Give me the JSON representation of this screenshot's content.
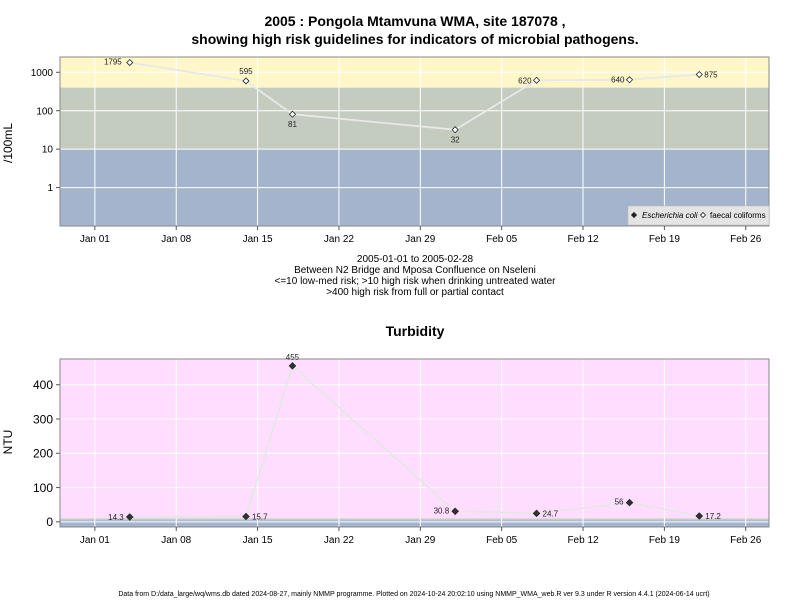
{
  "chart_data": [
    {
      "type": "line",
      "title_line1": "2005 : Pongola Mtamvuna WMA, site 187078 ,",
      "title_line2": "showing high risk guidelines for indicators of microbial pathogens.",
      "ylabel": "/100mL",
      "y_scale": "log",
      "ylim": [
        0.1,
        2500
      ],
      "y_ticks": [
        "1",
        "10",
        "100",
        "1000"
      ],
      "xlim": [
        "2004-12-29",
        "2005-02-28"
      ],
      "x_ticks": [
        "Jan 01",
        "Jan 08",
        "Jan 15",
        "Jan 22",
        "Jan 29",
        "Feb 05",
        "Feb 12",
        "Feb 19",
        "Feb 26"
      ],
      "grid": true,
      "bands": [
        {
          "from": 0.1,
          "to": 10,
          "color": "#a4b4cc"
        },
        {
          "from": 10,
          "to": 400,
          "color": "#c4ccc0"
        },
        {
          "from": 400,
          "to": 2500,
          "color": "#fff7c8"
        }
      ],
      "legend_position": "bottom-right",
      "series": [
        {
          "name": "Escherichia coli",
          "marker": "filled-diamond",
          "x": [],
          "values": [],
          "labels": []
        },
        {
          "name": "faecal coliforms",
          "marker": "open-diamond",
          "x": [
            "2005-01-04",
            "2005-01-14",
            "2005-01-18",
            "2005-02-01",
            "2005-02-08",
            "2005-02-16",
            "2005-02-22"
          ],
          "values": [
            1795,
            595,
            81,
            32,
            620,
            640,
            875
          ],
          "labels": [
            "1795",
            "595",
            "81",
            "32",
            "620",
            "640",
            "875"
          ]
        }
      ],
      "subtitle_lines": [
        "2005-01-01 to 2005-02-28",
        "Between N2 Bridge and Mposa Confluence on Nseleni",
        "<=10 low-med risk; >10 high risk when drinking untreated water",
        ">400 high risk from full or partial contact"
      ]
    },
    {
      "type": "line",
      "title": "Turbidity",
      "ylabel": "NTU",
      "ylim": [
        -15,
        475
      ],
      "y_ticks": [
        "0",
        "100",
        "200",
        "300",
        "400"
      ],
      "xlim": [
        "2004-12-29",
        "2005-02-28"
      ],
      "x_ticks": [
        "Jan 01",
        "Jan 08",
        "Jan 15",
        "Jan 22",
        "Jan 29",
        "Feb 05",
        "Feb 12",
        "Feb 19",
        "Feb 26"
      ],
      "grid": true,
      "bands": [
        {
          "from": -15,
          "to": 5,
          "color": "#a4b4cc"
        },
        {
          "from": 5,
          "to": 10,
          "color": "#c4ccc0"
        },
        {
          "from": 10,
          "to": 475,
          "color": "#ffddff"
        }
      ],
      "series": [
        {
          "name": "",
          "marker": "filled-diamond",
          "x": [
            "2005-01-04",
            "2005-01-14",
            "2005-01-18",
            "2005-02-01",
            "2005-02-08",
            "2005-02-16",
            "2005-02-22"
          ],
          "values": [
            14.3,
            15.7,
            455,
            30.8,
            24.7,
            56,
            17.2
          ],
          "labels": [
            "14.3",
            "15.7",
            "455",
            "30.8",
            "24.7",
            "56",
            "17.2"
          ]
        }
      ]
    }
  ],
  "footer": "Data from D:/data_large/wq/wms.db dated 2024-08-27, mainly NMMP programme. Plotted on 2024-10-24 20:02:10 using NMMP_WMA_web.R ver 9.3 under R version 4.4.1 (2024-06-14 ucrt)"
}
